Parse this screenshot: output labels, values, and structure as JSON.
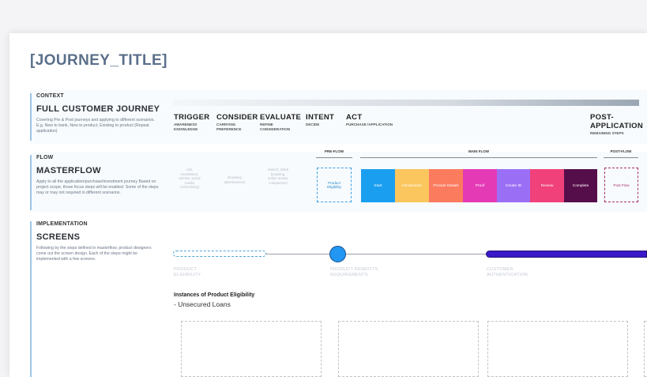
{
  "journey_title": "[JOURNEY_TITLE]",
  "context": {
    "label": "CONTEXT",
    "title": "FULL CUSTOMER JOURNEY",
    "description": "Covering Pre & Post journeys and applying to different scenarios. E.g. New to bank, New to product, Existing to product (Repeat application)"
  },
  "stages": [
    {
      "name": "TRIGGER",
      "sub": "AWARENESS\nKNOWLEDGE"
    },
    {
      "name": "CONSIDER",
      "sub": "CARRYING\nPREFERENCE"
    },
    {
      "name": "EVALUATE",
      "sub": "REFINE\nCONSIDERATION"
    },
    {
      "name": "INTENT",
      "sub": "DECIDE"
    },
    {
      "name": "ACT",
      "sub": "PURCHASE /APPLICATION"
    },
    {
      "name": "POST-\nAPPLICATION",
      "sub": "REMAINING STEPS"
    }
  ],
  "flow": {
    "label": "FLOW",
    "title": "MASTERFLOW",
    "description": "Apply to all the application/purchase/investment journey Based on project scope, those focus steps will be enabled. Some of the steps may or may not required in different scenarios.",
    "pre_flow_label": "PRE-FLOW",
    "main_flow_label": "MAIN FLOW",
    "post_flow_label": "POST-FLOW",
    "ghost_items": [
      "Ads,\nnewsletters,\narticles, social\nmedia\n(Advertising)",
      "Browsing\nadvertisement",
      "Search, (Web\nbrowsing,\nonline review,\ncomparison)"
    ],
    "pre_flow_step": "Product\nEligibility",
    "main_steps": [
      {
        "label": "Start",
        "color": "#1a9ff0"
      },
      {
        "label": "Introduction",
        "color": "#fbc65e"
      },
      {
        "label": "Provide Details",
        "color": "#fb7b5f"
      },
      {
        "label": "Proof",
        "color": "#e43ab6"
      },
      {
        "label": "Create ID",
        "color": "#9b6ff5"
      },
      {
        "label": "Review",
        "color": "#f0417a"
      },
      {
        "label": "Complete",
        "color": "#560e4b"
      }
    ],
    "post_flow_step": "Post Flow"
  },
  "implementation": {
    "label": "IMPLEMENTATION",
    "title": "SCREENS",
    "description": "Following by the steps defined in masterflow, product designers come out the screen design. Each of the steps might be implemented with a few screens.",
    "timeline_labels": [
      "PRODUCT\nELIGIBILITY",
      "PRODUCT BENEFITS,\nREQUIREMENTS",
      "CUSTOMER\nAUTHENTICATION"
    ],
    "instances_title": "Instances of Product Eligibility",
    "instances_subtitle": "- Unsecured Loans"
  }
}
